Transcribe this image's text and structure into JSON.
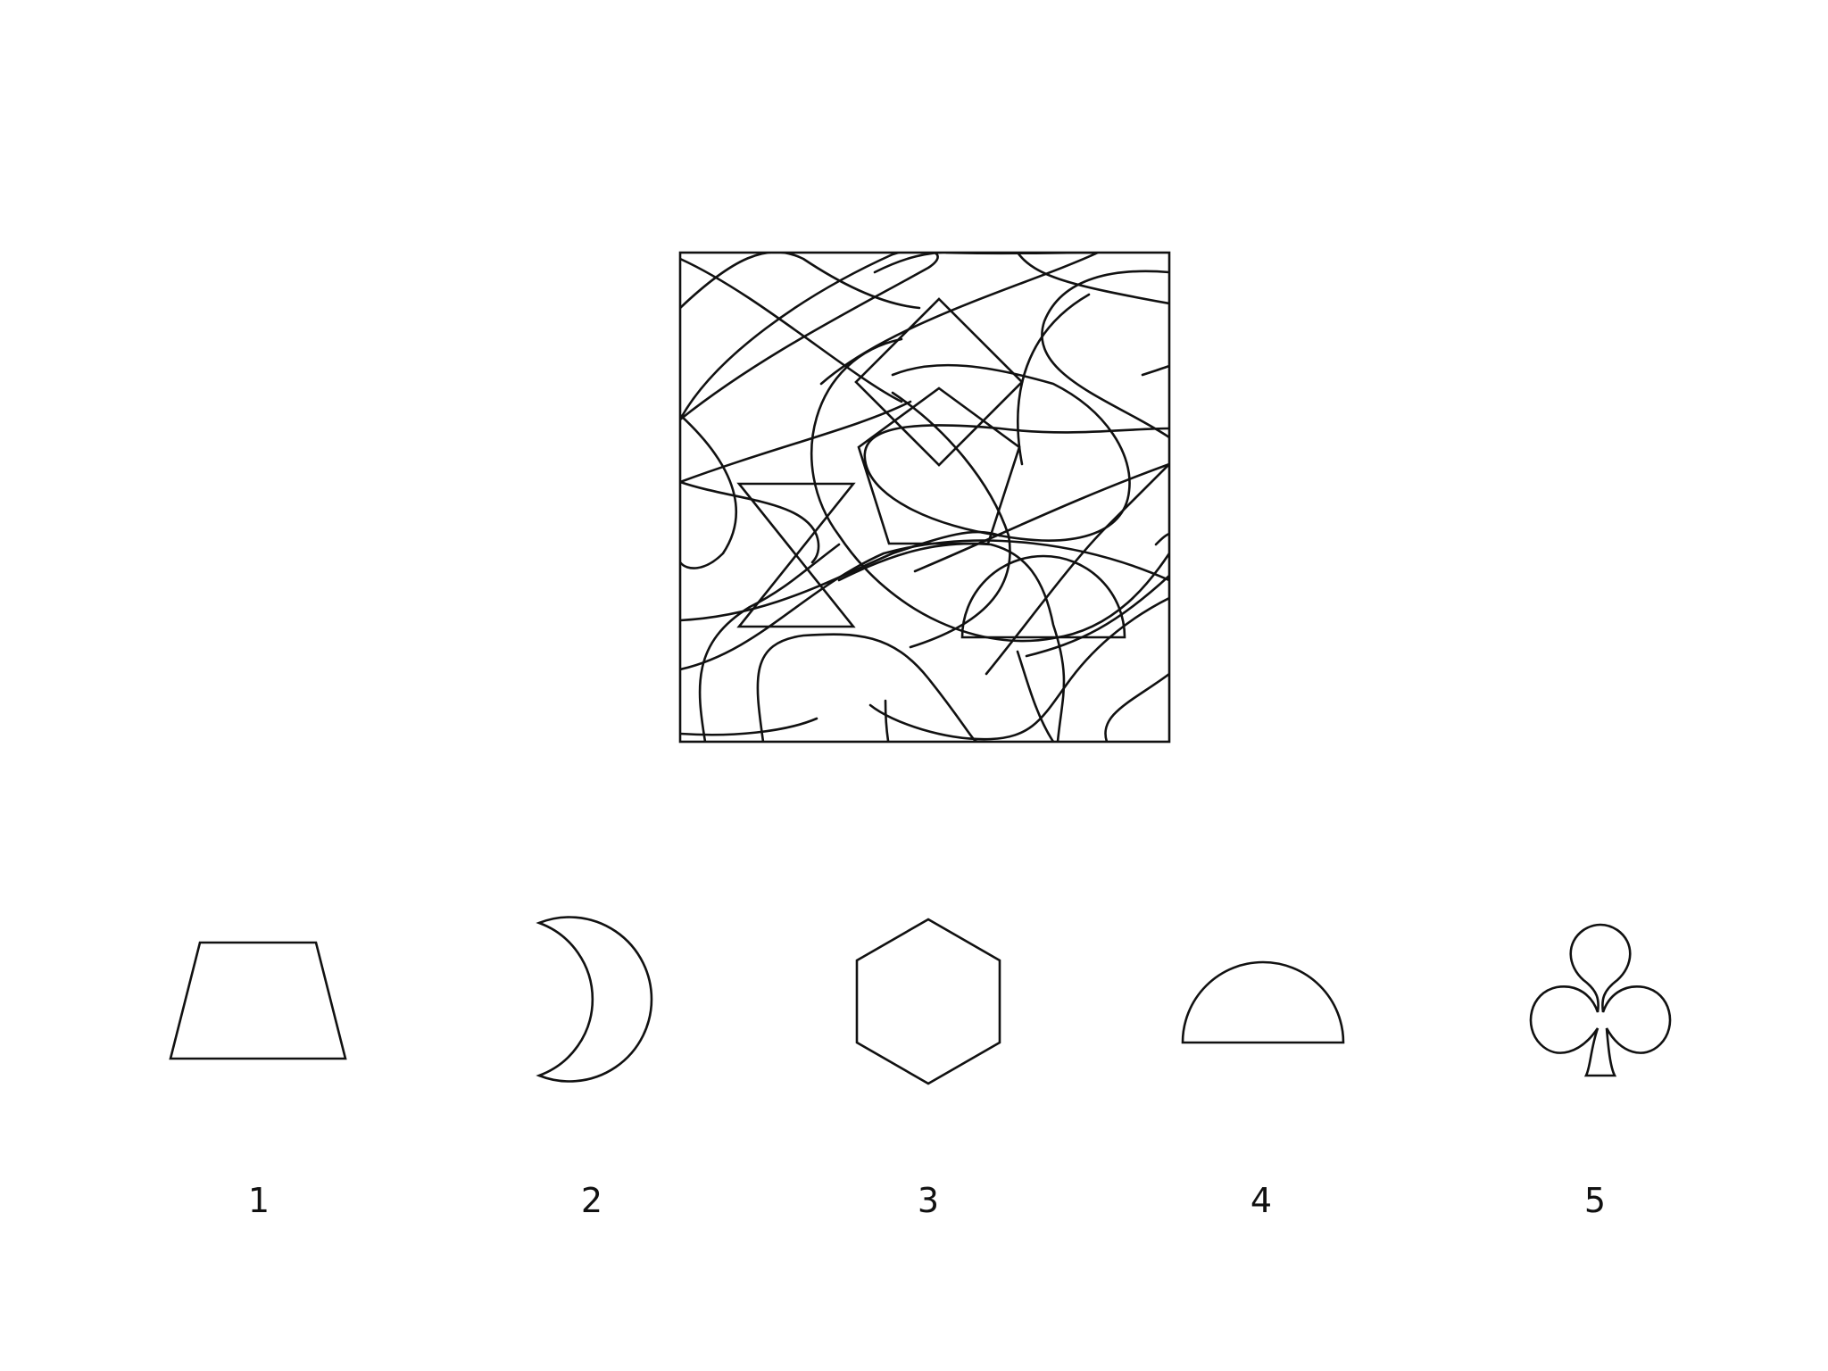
{
  "puzzle": {
    "options": [
      {
        "label": "1",
        "shape": "trapezoid-icon"
      },
      {
        "label": "2",
        "shape": "crescent-moon-icon"
      },
      {
        "label": "3",
        "shape": "hexagon-icon"
      },
      {
        "label": "4",
        "shape": "semicircle-icon"
      },
      {
        "label": "5",
        "shape": "club-icon"
      }
    ]
  },
  "colors": {
    "ink": "#111111",
    "background": "#ffffff"
  }
}
